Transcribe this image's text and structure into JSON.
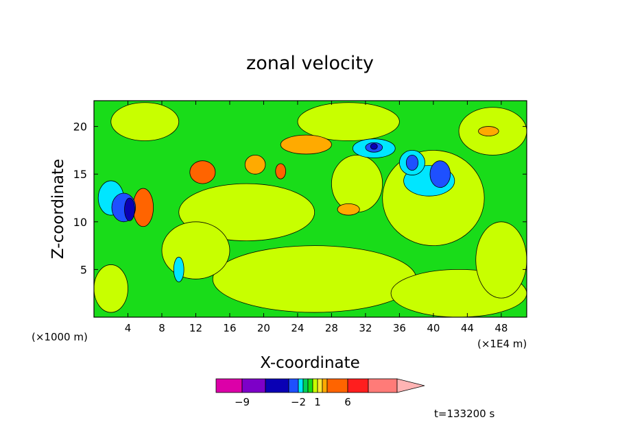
{
  "chart_data": {
    "type": "heatmap",
    "title": "zonal velocity",
    "xlabel": "X-coordinate",
    "ylabel": "Z-coordinate",
    "x_unit_note": "(×1E4 m)",
    "y_unit_note": "(×1000 m)",
    "xlim": [
      0,
      51
    ],
    "ylim": [
      0,
      22.7
    ],
    "x_ticks": [
      "4",
      "8",
      "12",
      "16",
      "20",
      "24",
      "28",
      "32",
      "36",
      "40",
      "44",
      "48"
    ],
    "y_ticks": [
      "5",
      "10",
      "15",
      "20"
    ],
    "time_label": "t=133200 s",
    "colorbar": {
      "labels": [
        {
          "value": -9,
          "text": "−9"
        },
        {
          "value": -2,
          "text": "−2"
        },
        {
          "value": 1,
          "text": "1"
        },
        {
          "value": 6,
          "text": "6"
        }
      ],
      "levels": [
        -12,
        -9,
        -6,
        -3,
        -2,
        -1,
        0,
        0.5,
        1,
        2,
        3,
        6,
        9,
        12
      ],
      "colors": [
        "#dc00a8",
        "#7d00c8",
        "#0a00b4",
        "#1e50ff",
        "#00e6ff",
        "#00d25a",
        "#19dc19",
        "#c8ff00",
        "#ffe632",
        "#ffaa00",
        "#ff6400",
        "#ff1e1e",
        "#ff7b78",
        "#ffb4b4"
      ]
    },
    "background_level": "#19dc19",
    "regions": [
      {
        "kind": "yellow",
        "x": 26,
        "z": 4,
        "rx": 12,
        "rz": 3.5
      },
      {
        "kind": "yellow",
        "x": 43,
        "z": 2.5,
        "rx": 8,
        "rz": 2.5
      },
      {
        "kind": "yellow",
        "x": 18,
        "z": 11,
        "rx": 8,
        "rz": 3
      },
      {
        "kind": "yellow",
        "x": 6,
        "z": 20.5,
        "rx": 4,
        "rz": 2
      },
      {
        "kind": "yellow",
        "x": 40,
        "z": 12.5,
        "rx": 6,
        "rz": 5
      },
      {
        "kind": "yellow",
        "x": 48,
        "z": 6,
        "rx": 3,
        "rz": 4
      },
      {
        "kind": "yellow",
        "x": 30,
        "z": 20.5,
        "rx": 6,
        "rz": 2
      },
      {
        "kind": "yellow",
        "x": 12,
        "z": 7,
        "rx": 4,
        "rz": 3
      },
      {
        "kind": "yellow",
        "x": 47,
        "z": 19.5,
        "rx": 4,
        "rz": 2.5
      },
      {
        "kind": "yellow",
        "x": 31,
        "z": 14,
        "rx": 3,
        "rz": 3
      },
      {
        "kind": "yellow",
        "x": 2,
        "z": 3,
        "rx": 2,
        "rz": 2.5
      },
      {
        "kind": "orange-light",
        "x": 25,
        "z": 18.1,
        "rx": 3,
        "rz": 1
      },
      {
        "kind": "orange-light",
        "x": 19,
        "z": 16,
        "rx": 1.2,
        "rz": 1
      },
      {
        "kind": "orange-light",
        "x": 30,
        "z": 11.3,
        "rx": 1.3,
        "rz": 0.6
      },
      {
        "kind": "orange-light",
        "x": 46.5,
        "z": 19.5,
        "rx": 1.2,
        "rz": 0.5
      },
      {
        "kind": "orange",
        "x": 12.8,
        "z": 15.2,
        "rx": 1.5,
        "rz": 1.2
      },
      {
        "kind": "orange",
        "x": 5.8,
        "z": 11.5,
        "rx": 1.2,
        "rz": 2
      },
      {
        "kind": "orange",
        "x": 22,
        "z": 15.3,
        "rx": 0.6,
        "rz": 0.8
      },
      {
        "kind": "cyan",
        "x": 39.5,
        "z": 14.3,
        "rx": 3,
        "rz": 1.6
      },
      {
        "kind": "cyan",
        "x": 33,
        "z": 17.7,
        "rx": 2.5,
        "rz": 1
      },
      {
        "kind": "cyan",
        "x": 37.5,
        "z": 16.2,
        "rx": 1.5,
        "rz": 1.3
      },
      {
        "kind": "cyan",
        "x": 2,
        "z": 12.5,
        "rx": 1.5,
        "rz": 1.8
      },
      {
        "kind": "cyan",
        "x": 10,
        "z": 5,
        "rx": 0.6,
        "rz": 1.3
      },
      {
        "kind": "blue",
        "x": 40.8,
        "z": 15,
        "rx": 1.2,
        "rz": 1.4
      },
      {
        "kind": "blue",
        "x": 33,
        "z": 17.8,
        "rx": 1,
        "rz": 0.5
      },
      {
        "kind": "blue",
        "x": 37.5,
        "z": 16.2,
        "rx": 0.7,
        "rz": 0.8
      },
      {
        "kind": "blue",
        "x": 3.5,
        "z": 11.5,
        "rx": 1.4,
        "rz": 1.5
      },
      {
        "kind": "navy",
        "x": 4.2,
        "z": 11.3,
        "rx": 0.6,
        "rz": 1.2
      },
      {
        "kind": "navy",
        "x": 33,
        "z": 17.9,
        "rx": 0.4,
        "rz": 0.3
      }
    ]
  }
}
